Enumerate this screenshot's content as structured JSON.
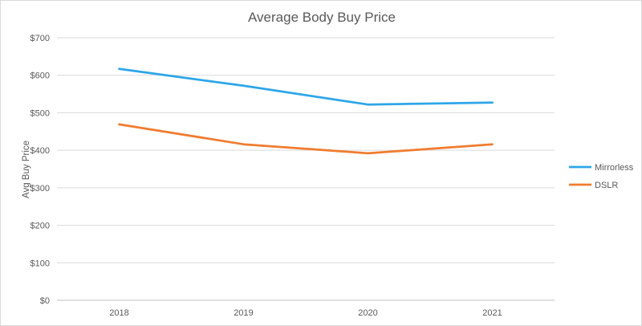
{
  "chart_data": {
    "type": "line",
    "title": "Average Body Buy Price",
    "xlabel": "",
    "ylabel": "Avg Buy Price",
    "categories": [
      "2018",
      "2019",
      "2020",
      "2021"
    ],
    "ylim": [
      0,
      700
    ],
    "yticks": [
      0,
      100,
      200,
      300,
      400,
      500,
      600,
      700
    ],
    "ytick_labels": [
      "$0",
      "$100",
      "$200",
      "$300",
      "$400",
      "$500",
      "$600",
      "$700"
    ],
    "grid": true,
    "legend_position": "right",
    "series": [
      {
        "name": "Mirrorless",
        "color": "#2ea6e8",
        "values": [
          617,
          572,
          522,
          527
        ]
      },
      {
        "name": "DSLR",
        "color": "#f07c30",
        "values": [
          469,
          416,
          392,
          416
        ]
      }
    ]
  }
}
